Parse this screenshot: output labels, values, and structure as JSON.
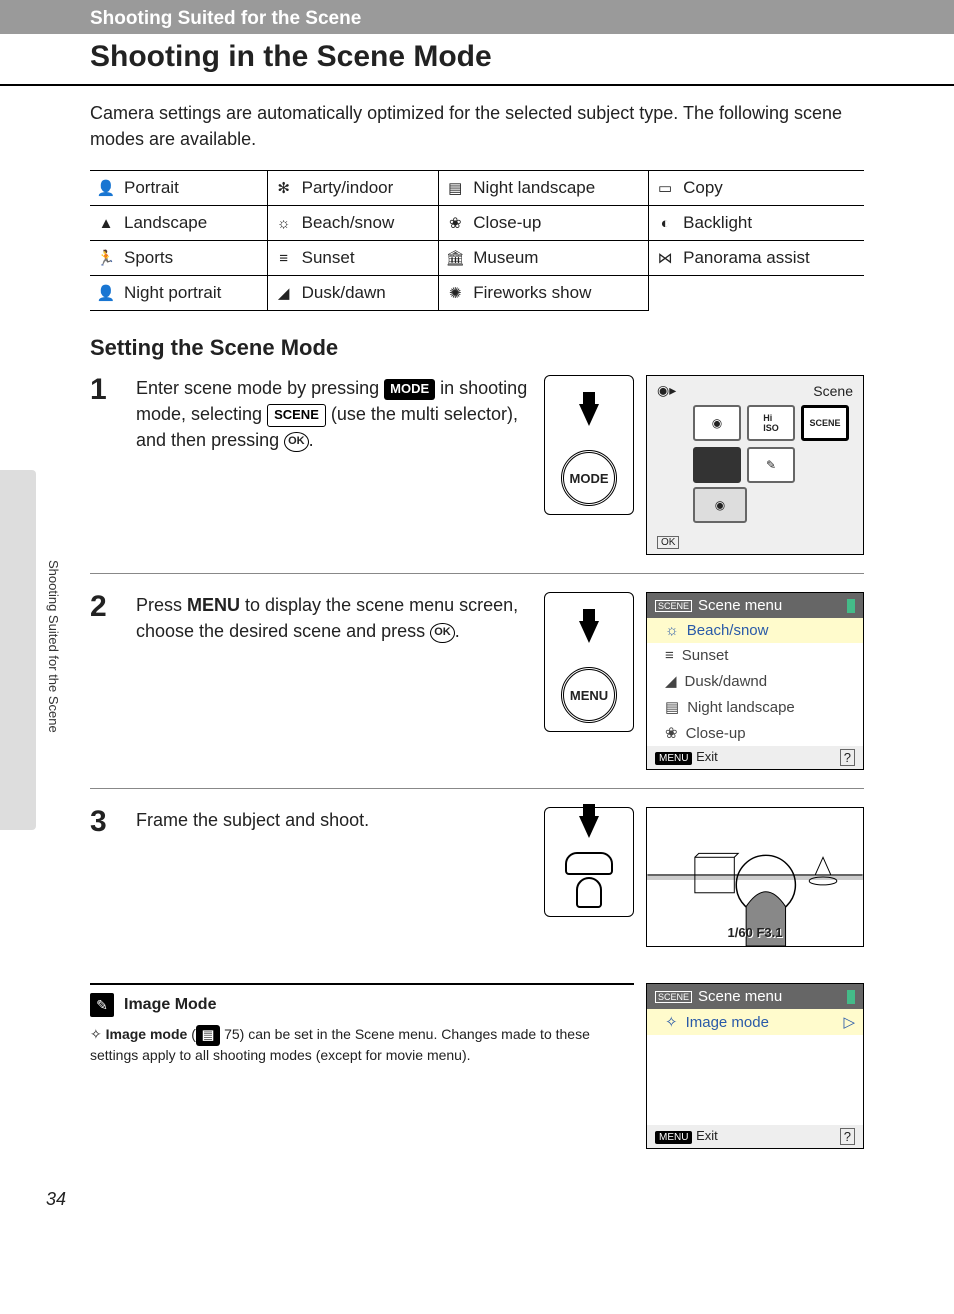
{
  "header_band": "Shooting Suited for the Scene",
  "title": "Shooting in the Scene Mode",
  "intro": "Camera settings are automatically optimized for the selected subject type. The following scene modes are available.",
  "side_label": "Shooting Suited for the Scene",
  "scene_table": [
    [
      {
        "icon": "👤",
        "label": "Portrait"
      },
      {
        "icon": "✻",
        "label": "Party/indoor"
      },
      {
        "icon": "▤",
        "label": "Night landscape"
      },
      {
        "icon": "▭",
        "label": "Copy"
      }
    ],
    [
      {
        "icon": "▲",
        "label": "Landscape"
      },
      {
        "icon": "☼",
        "label": "Beach/snow"
      },
      {
        "icon": "❀",
        "label": "Close-up"
      },
      {
        "icon": "◐",
        "label": "Backlight"
      }
    ],
    [
      {
        "icon": "🏃",
        "label": "Sports"
      },
      {
        "icon": "≡",
        "label": "Sunset"
      },
      {
        "icon": "🏛",
        "label": "Museum"
      },
      {
        "icon": "⋈",
        "label": "Panorama assist"
      }
    ],
    [
      {
        "icon": "👤",
        "label": "Night portrait"
      },
      {
        "icon": "◢",
        "label": "Dusk/dawn"
      },
      {
        "icon": "✺",
        "label": "Fireworks show"
      },
      {
        "icon": "",
        "label": ""
      }
    ]
  ],
  "subhead": "Setting the Scene Mode",
  "step1": {
    "num": "1",
    "text_a": "Enter scene mode by pressing ",
    "badge1": "MODE",
    "text_b": " in shooting mode, selecting ",
    "badge2": "SCENE",
    "text_c": " (use the multi selector), and then pressing ",
    "ok": "OK",
    "text_d": ".",
    "btn_label": "MODE",
    "lcd_title": "Scene",
    "lcd_ok": "OK"
  },
  "step2": {
    "num": "2",
    "text_a": "Press ",
    "menu": "MENU",
    "text_b": " to display the scene menu screen, choose the desired scene and press ",
    "ok": "OK",
    "text_c": ".",
    "btn_label": "MENU",
    "lcd_bar": "Scene menu",
    "lcd_items": [
      {
        "icon": "☼",
        "label": "Beach/snow",
        "hl": true
      },
      {
        "icon": "≡",
        "label": "Sunset"
      },
      {
        "icon": "◢",
        "label": "Dusk/dawnd"
      },
      {
        "icon": "▤",
        "label": "Night landscape"
      },
      {
        "icon": "❀",
        "label": "Close-up"
      }
    ],
    "exit_badge": "MENU",
    "exit_label": "Exit",
    "help": "?"
  },
  "step3": {
    "num": "3",
    "text": "Frame the subject and shoot.",
    "info": "1/60   F3.1"
  },
  "note": {
    "title": "Image Mode",
    "body_a": "Image mode",
    "body_b": " (",
    "page_ref": "75",
    "body_c": ") can be set in the Scene menu. Changes made to these settings apply to all shooting modes (except for movie menu).",
    "lcd_bar": "Scene menu",
    "lcd_item": "Image mode",
    "exit_badge": "MENU",
    "exit_label": "Exit",
    "help": "?"
  },
  "page_num": "34"
}
